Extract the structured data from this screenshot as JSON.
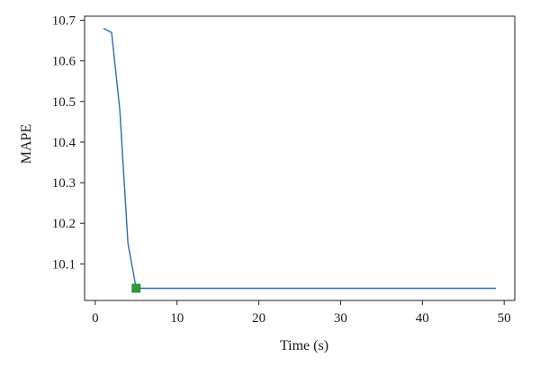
{
  "chart_data": {
    "type": "line",
    "title": "",
    "xlabel": "Time (s)",
    "ylabel": "MAPE",
    "xlim": [
      -1.3,
      51.3
    ],
    "ylim": [
      10.01,
      10.71
    ],
    "xticks": [
      0,
      10,
      20,
      30,
      40,
      50
    ],
    "yticks": [
      10.1,
      10.2,
      10.3,
      10.4,
      10.5,
      10.6,
      10.7
    ],
    "xtick_labels": [
      "0",
      "10",
      "20",
      "30",
      "40",
      "50"
    ],
    "ytick_labels": [
      "10.1",
      "10.2",
      "10.3",
      "10.4",
      "10.5",
      "10.6",
      "10.7"
    ],
    "grid": false,
    "series": [
      {
        "color": "#2b6cb0",
        "x": [
          1,
          2,
          3,
          4,
          5,
          49
        ],
        "y": [
          10.68,
          10.67,
          10.48,
          10.15,
          10.04,
          10.04
        ]
      }
    ],
    "marker": {
      "x": 5,
      "y": 10.04,
      "shape": "square",
      "color": "#2e9a3a"
    }
  }
}
